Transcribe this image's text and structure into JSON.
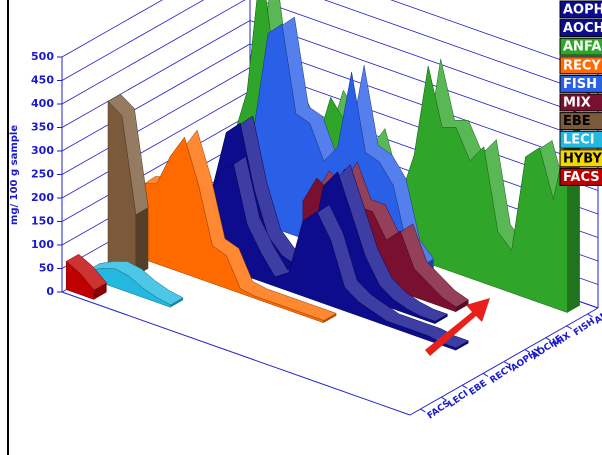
{
  "chart_data": {
    "type": "area3d",
    "y_label": "mg/ 100 g sample",
    "ylim": [
      0,
      500
    ],
    "yticks": [
      0,
      50,
      100,
      150,
      200,
      250,
      300,
      350,
      400,
      450,
      500
    ],
    "categories": [
      null,
      null,
      null,
      null,
      null,
      null,
      null,
      null,
      null,
      null,
      null,
      null,
      null,
      null,
      null,
      null,
      null,
      null,
      null,
      null,
      null,
      null,
      null,
      null,
      null
    ],
    "z_categories": [
      "FACS",
      "LECI",
      "EBE",
      "RECY",
      "AOPHY",
      "AOCHE",
      "MIX",
      "FISH",
      "ANFA"
    ],
    "series": [
      {
        "name": "AOPHY",
        "color": "#0c0c8c",
        "values": [
          null,
          null,
          null,
          null,
          120,
          200,
          230,
          110,
          60,
          20,
          40,
          160,
          190,
          140,
          50,
          30,
          20,
          10,
          10,
          10,
          10,
          5,
          5,
          null,
          null
        ]
      },
      {
        "name": "AOCHE",
        "color": "#0c0c8c",
        "values": [
          null,
          null,
          null,
          120,
          250,
          280,
          150,
          60,
          30,
          20,
          60,
          210,
          250,
          170,
          90,
          40,
          20,
          10,
          5,
          5,
          null,
          null,
          null,
          null,
          null
        ]
      },
      {
        "name": "ANFA",
        "color": "#2fa52a",
        "values": [
          120,
          230,
          520,
          300,
          250,
          200,
          170,
          280,
          240,
          180,
          230,
          130,
          120,
          220,
          420,
          300,
          310,
          250,
          290,
          120,
          90,
          300,
          330,
          230,
          380
        ]
      },
      {
        "name": "RECY",
        "color": "#ff6a00",
        "values": [
          130,
          160,
          170,
          240,
          290,
          200,
          80,
          70,
          10,
          5,
          5,
          5,
          5,
          5,
          5,
          null,
          null,
          null,
          null,
          null,
          null,
          null,
          null,
          null,
          null
        ]
      },
      {
        "name": "FISH",
        "color": "#2a5fe8",
        "values": [
          null,
          null,
          null,
          200,
          410,
          440,
          260,
          250,
          180,
          220,
          390,
          230,
          220,
          180,
          60,
          30,
          null,
          null,
          null,
          null,
          null,
          null,
          null,
          null,
          null
        ]
      },
      {
        "name": "MIX",
        "color": "#7a1030",
        "values": [
          null,
          null,
          null,
          null,
          null,
          null,
          null,
          null,
          120,
          180,
          160,
          220,
          150,
          150,
          100,
          130,
          60,
          40,
          20,
          10,
          null,
          null,
          null,
          null,
          null
        ]
      },
      {
        "name": "EBE",
        "color": "#7a5a3a",
        "values": [
          350,
          330,
          130,
          null,
          null,
          null,
          null,
          null,
          null,
          null,
          null,
          null,
          null,
          null,
          null,
          null,
          null,
          null,
          null,
          null,
          null,
          null,
          null,
          null,
          null
        ]
      },
      {
        "name": "LECI",
        "color": "#22b8e0",
        "values": [
          15,
          30,
          40,
          35,
          20,
          10,
          5,
          null,
          null,
          null,
          null,
          null,
          null,
          null,
          null,
          null,
          null,
          null,
          null,
          null,
          null,
          null,
          null,
          null,
          null
        ]
      },
      {
        "name": "HYBY",
        "color": "#f5d800",
        "values": [
          null,
          null,
          null,
          null,
          null,
          null,
          null,
          null,
          null,
          null,
          null,
          null,
          null,
          null,
          null,
          null,
          null,
          null,
          null,
          null,
          null,
          null,
          null,
          null,
          null
        ]
      },
      {
        "name": "FACS",
        "color": "#c00000",
        "values": [
          60,
          45,
          20,
          null,
          null,
          null,
          null,
          null,
          null,
          null,
          null,
          null,
          null,
          null,
          null,
          null,
          null,
          null,
          null,
          null,
          null,
          null,
          null,
          null,
          null
        ]
      }
    ]
  }
}
